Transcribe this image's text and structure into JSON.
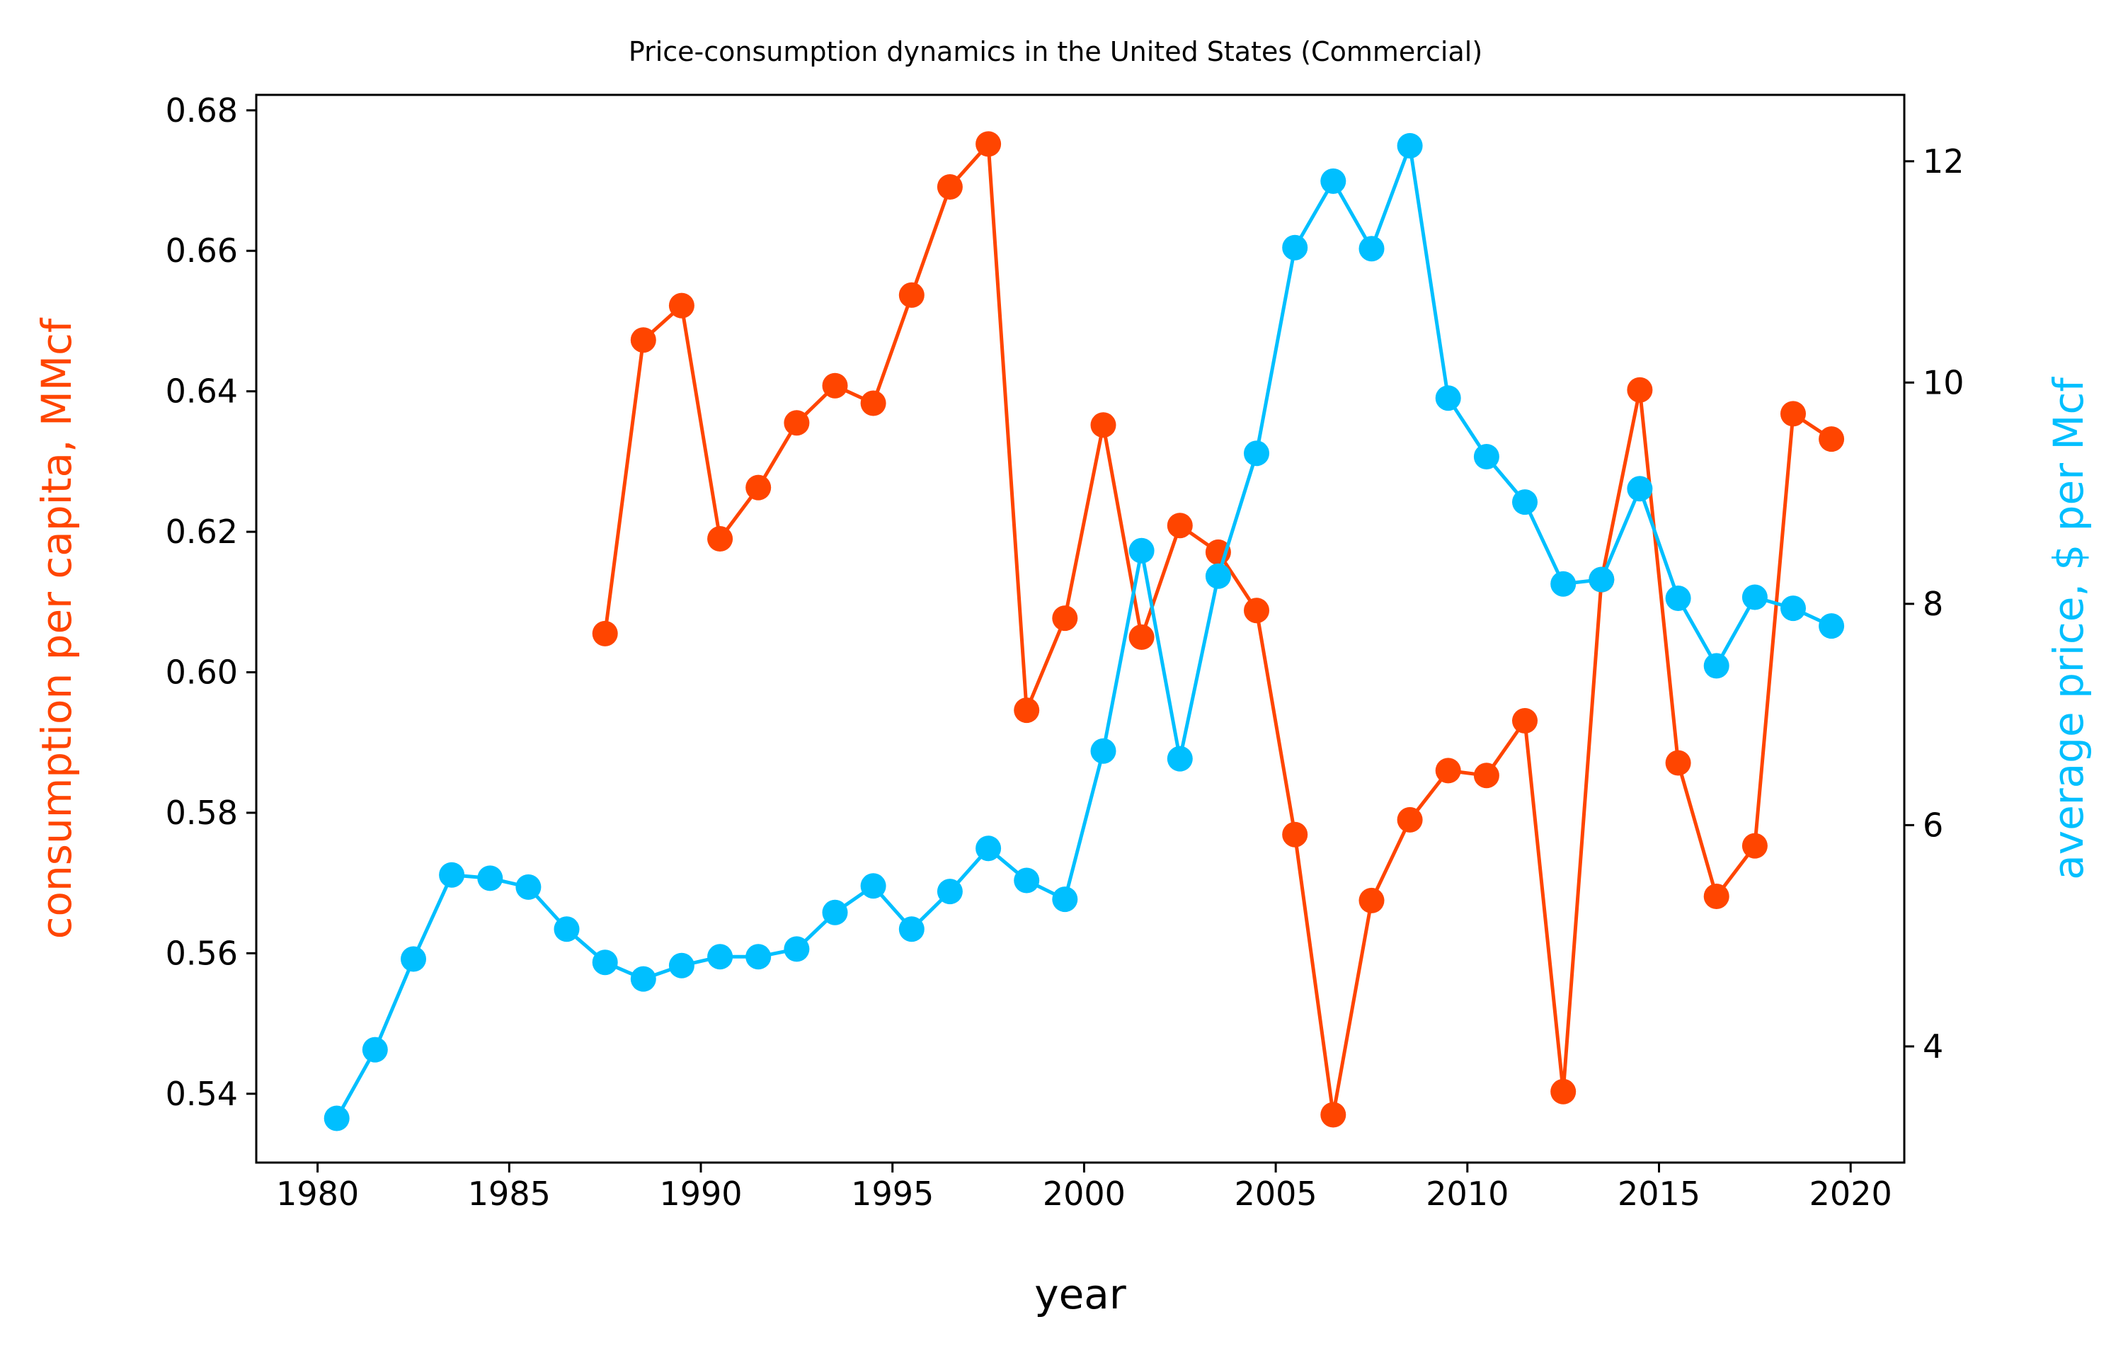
{
  "chart_data": {
    "type": "line",
    "title": "Price-consumption dynamics in the United States (Commercial)",
    "xlabel": "year",
    "ylabel_left": "consumption per capita, MMcf",
    "ylabel_right": "average price, $ per Mcf",
    "xlim": [
      1978.4,
      2021.4
    ],
    "ylim_left": [
      0.5302,
      0.6822
    ],
    "ylim_right": [
      2.95,
      12.6
    ],
    "x_ticks": [
      1980,
      1985,
      1990,
      1995,
      2000,
      2005,
      2010,
      2015,
      2020
    ],
    "y_left_ticks": [
      0.54,
      0.56,
      0.58,
      0.6,
      0.62,
      0.64,
      0.66,
      0.68
    ],
    "y_right_ticks": [
      4,
      6,
      8,
      10,
      12
    ],
    "grid": false,
    "series": [
      {
        "axis": "left",
        "color": "#ff4500",
        "x": [
          1987.5,
          1988.5,
          1989.5,
          1990.5,
          1991.5,
          1992.5,
          1993.5,
          1994.5,
          1995.5,
          1996.5,
          1997.5,
          1998.5,
          1999.5,
          2000.5,
          2001.5,
          2002.5,
          2003.5,
          2004.5,
          2005.5,
          2006.5,
          2007.5,
          2008.5,
          2009.5,
          2010.5,
          2011.5,
          2012.5,
          2013.5,
          2014.5,
          2015.5,
          2016.5,
          2017.5,
          2018.5,
          2019.5
        ],
        "values": [
          0.6055,
          0.6473,
          0.6522,
          0.619,
          0.6263,
          0.6355,
          0.6408,
          0.6383,
          0.6537,
          0.6691,
          0.6752,
          0.5946,
          0.6077,
          0.6352,
          0.605,
          0.6209,
          0.6171,
          0.6088,
          0.5769,
          0.537,
          0.5675,
          0.579,
          0.586,
          0.5853,
          0.5931,
          0.5403,
          0.6132,
          0.6402,
          0.5871,
          0.5681,
          0.5753,
          0.6368,
          0.6332
        ]
      },
      {
        "axis": "right",
        "color": "#00bfff",
        "x": [
          1980.5,
          1981.5,
          1982.5,
          1983.5,
          1984.5,
          1985.5,
          1986.5,
          1987.5,
          1988.5,
          1989.5,
          1990.5,
          1991.5,
          1992.5,
          1993.5,
          1994.5,
          1995.5,
          1996.5,
          1997.5,
          1998.5,
          1999.5,
          2000.5,
          2001.5,
          2002.5,
          2003.5,
          2004.5,
          2005.5,
          2006.5,
          2007.5,
          2008.5,
          2009.5,
          2010.5,
          2011.5,
          2012.5,
          2013.5,
          2014.5,
          2015.5,
          2016.5,
          2017.5,
          2018.5,
          2019.5
        ],
        "values": [
          3.35,
          3.97,
          4.79,
          5.55,
          5.52,
          5.44,
          5.06,
          4.76,
          4.61,
          4.73,
          4.81,
          4.81,
          4.88,
          5.21,
          5.45,
          5.06,
          5.4,
          5.79,
          5.5,
          5.33,
          6.67,
          8.48,
          6.6,
          8.25,
          9.36,
          11.22,
          11.82,
          11.21,
          12.14,
          9.86,
          9.33,
          8.92,
          8.18,
          8.22,
          9.04,
          8.05,
          7.44,
          8.06,
          7.96,
          7.8
        ]
      }
    ]
  }
}
